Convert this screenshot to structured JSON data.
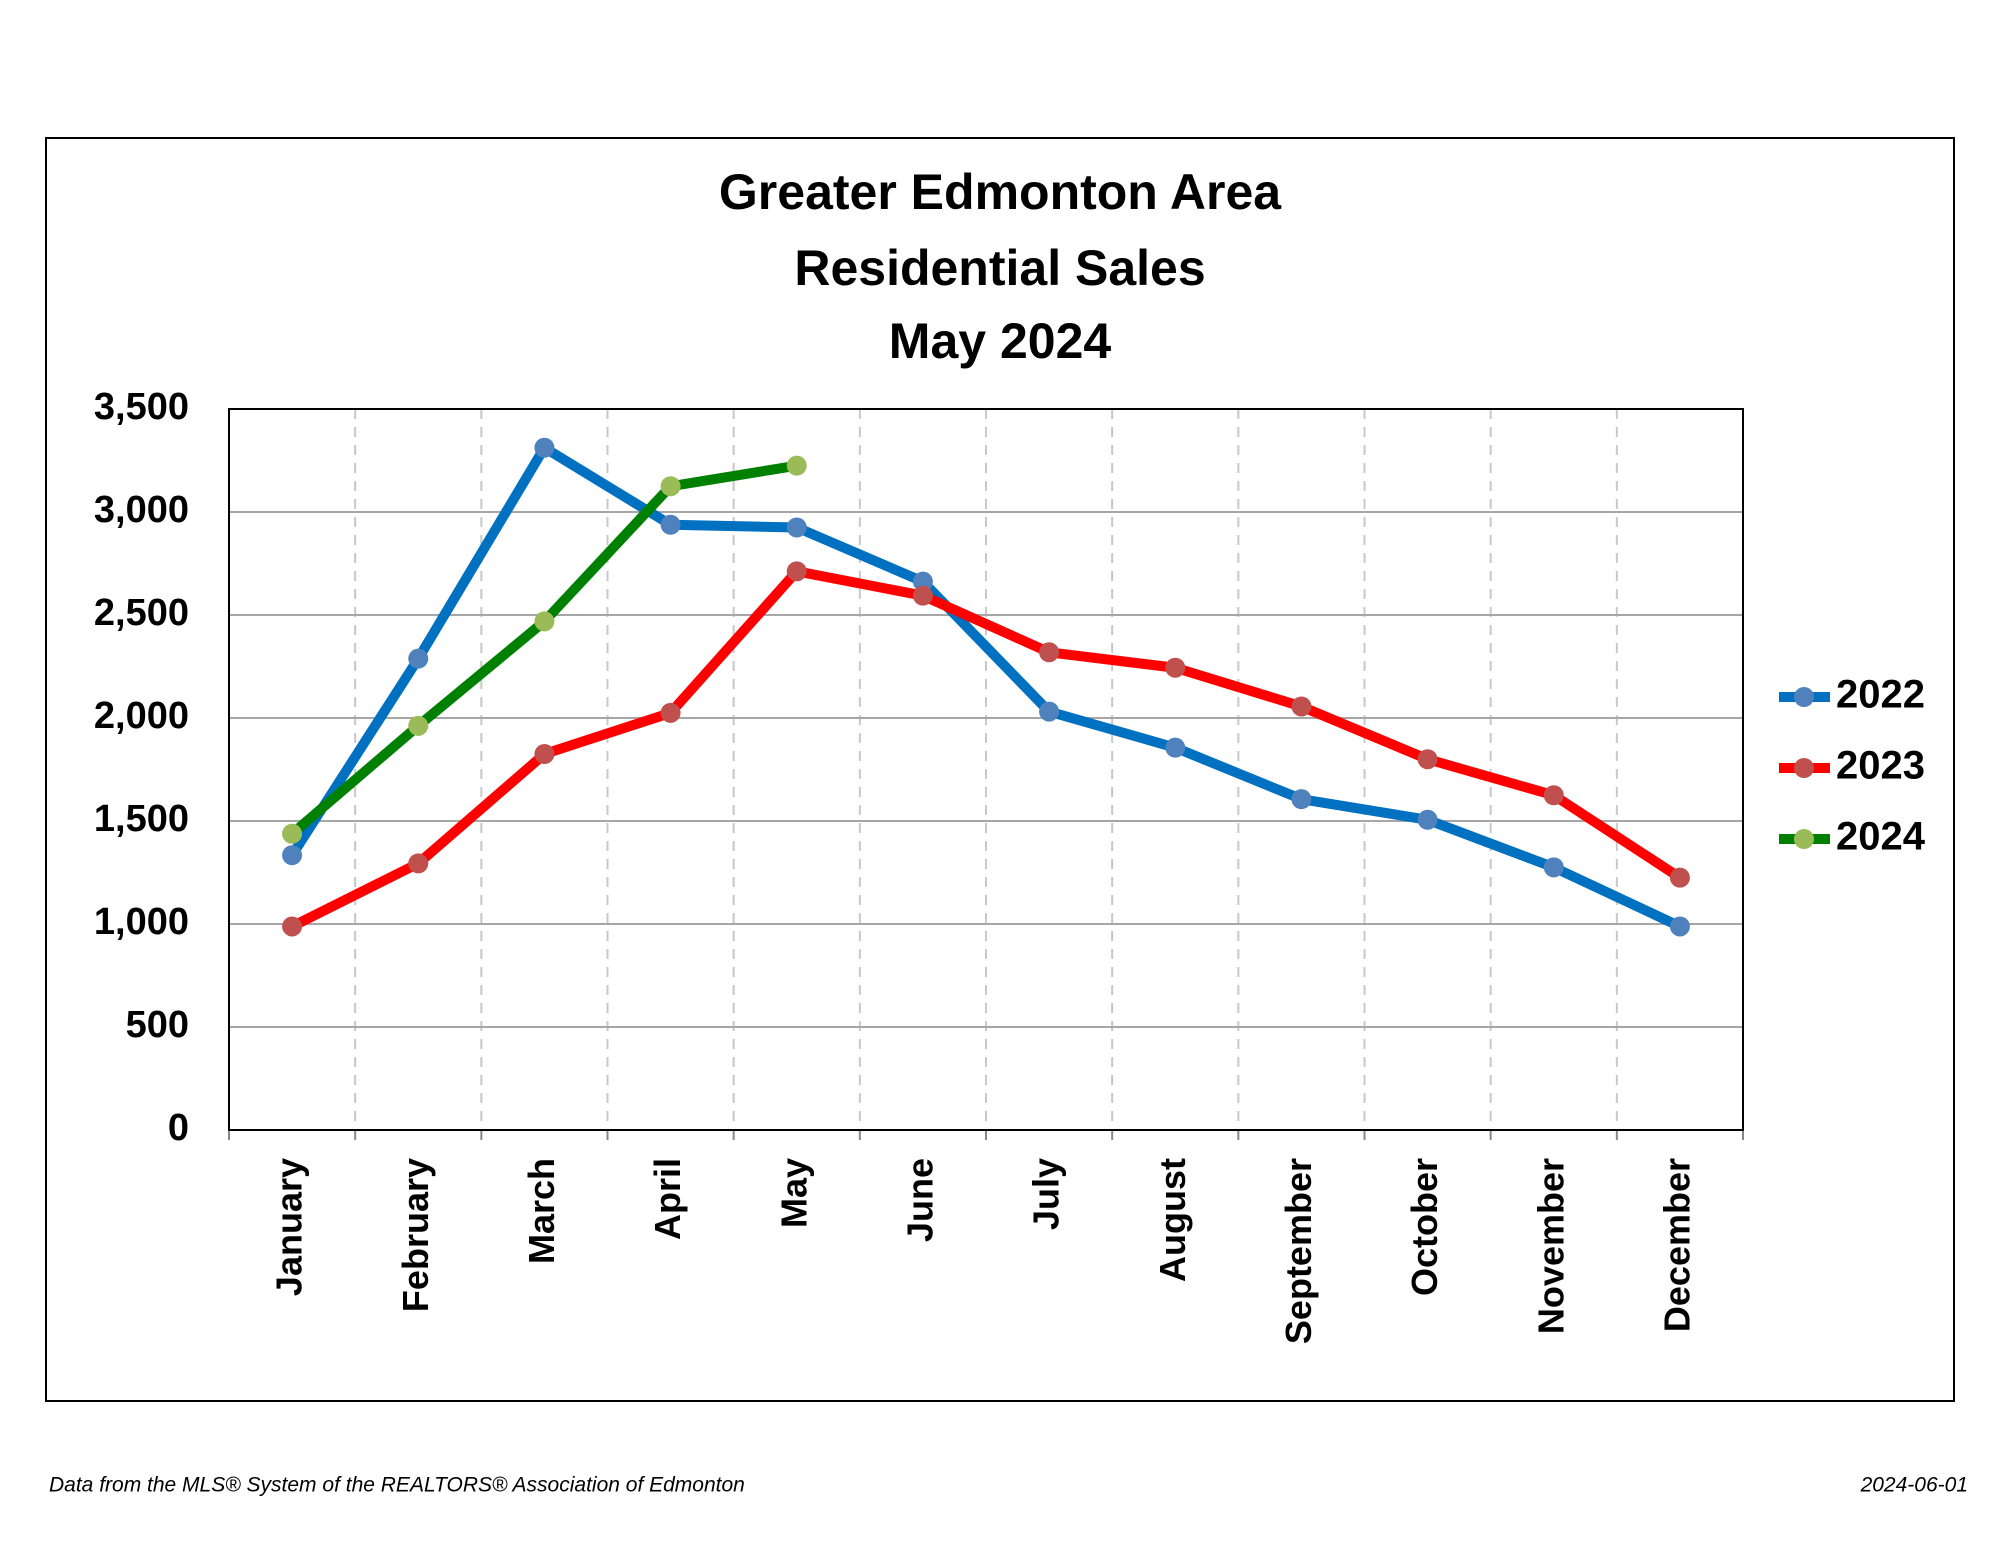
{
  "chart_data": {
    "type": "line",
    "title": [
      "Greater Edmonton Area",
      "Residential Sales",
      "May 2024"
    ],
    "categories": [
      "January",
      "February",
      "March",
      "April",
      "May",
      "June",
      "July",
      "August",
      "September",
      "October",
      "November",
      "December"
    ],
    "series": [
      {
        "name": "2022",
        "color": "#0070c0",
        "marker_color": "#4f81bd",
        "values": [
          1334,
          2288,
          3312,
          2938,
          2925,
          2662,
          2031,
          1856,
          1606,
          1506,
          1275,
          988
        ]
      },
      {
        "name": "2023",
        "color": "#ff0000",
        "marker_color": "#c0504d",
        "values": [
          988,
          1294,
          1825,
          2025,
          2712,
          2594,
          2319,
          2244,
          2056,
          1800,
          1625,
          1225
        ]
      },
      {
        "name": "2024",
        "color": "#008000",
        "marker_color": "#9bbb59",
        "values": [
          1438,
          1962,
          2469,
          3125,
          3225,
          null,
          null,
          null,
          null,
          null,
          null,
          null
        ]
      }
    ],
    "ylim": [
      0,
      3500
    ],
    "yticks": [
      0,
      500,
      {
        "value": 1000,
        "label": "1,000"
      },
      {
        "value": 1500,
        "label": "1,500"
      },
      {
        "value": 2000,
        "label": "2,000"
      },
      {
        "value": 2500,
        "label": "2,500"
      },
      {
        "value": 3000,
        "label": "3,000"
      },
      {
        "value": 3500,
        "label": "3,500"
      }
    ],
    "grid": true,
    "legend": "right",
    "source": "Data from the MLS® System of the REALTORS® Association of Edmonton",
    "date": "2024-06-01"
  }
}
